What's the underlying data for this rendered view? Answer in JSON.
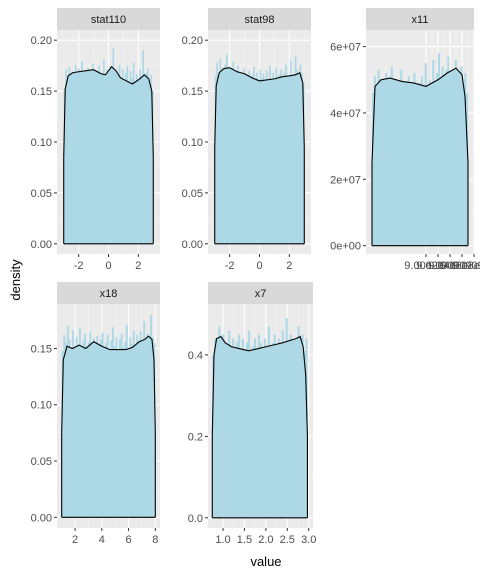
{
  "chart_data": {
    "type": "histogram-density",
    "layout": "facet_wrap",
    "xlabel": "value",
    "ylabel": "density",
    "colors": {
      "panel_background": "#ebebeb",
      "grid_major": "#ffffff",
      "grid_minor": "#f3f3f3",
      "strip_background": "#d9d9d9",
      "histogram_fill": "#add8e6",
      "density_line": "#000000",
      "tick_text": "#4d4d4d"
    },
    "panels": [
      {
        "title": "stat110",
        "xlim": [
          -3.45,
          3.45
        ],
        "ylim": [
          -0.01,
          0.21
        ],
        "xticks": [
          -2,
          0,
          2
        ],
        "xtick_labels": [
          "-2",
          "0",
          "2"
        ],
        "yticks": [
          0.0,
          0.05,
          0.1,
          0.15,
          0.2
        ],
        "ytick_labels": [
          "0.00",
          "0.05",
          "0.10",
          "0.15",
          "0.20"
        ],
        "hist_range": [
          -3.0,
          3.0
        ],
        "hist_values": [
          0.152,
          0.171,
          0.16,
          0.174,
          0.158,
          0.169,
          0.162,
          0.176,
          0.155,
          0.172,
          0.164,
          0.179,
          0.16,
          0.168,
          0.154,
          0.173,
          0.166,
          0.161,
          0.177,
          0.158,
          0.17,
          0.163,
          0.175,
          0.159,
          0.168,
          0.181,
          0.162,
          0.171,
          0.157,
          0.174,
          0.166,
          0.192,
          0.16,
          0.169,
          0.155,
          0.176,
          0.164,
          0.172,
          0.158,
          0.168,
          0.175,
          0.151,
          0.17,
          0.163,
          0.178,
          0.16,
          0.167,
          0.155,
          0.171,
          0.164,
          0.19,
          0.158,
          0.168,
          0.172,
          0.16,
          0.166,
          0.15
        ],
        "density_x": [
          -3.0,
          -2.9,
          -2.7,
          -2.4,
          -2.0,
          -1.5,
          -1.0,
          -0.5,
          -0.2,
          0.2,
          0.5,
          0.8,
          1.2,
          1.6,
          2.0,
          2.4,
          2.7,
          2.9,
          3.0
        ],
        "density_y": [
          0.085,
          0.152,
          0.165,
          0.168,
          0.169,
          0.17,
          0.171,
          0.167,
          0.166,
          0.174,
          0.17,
          0.163,
          0.16,
          0.157,
          0.161,
          0.166,
          0.162,
          0.15,
          0.085
        ]
      },
      {
        "title": "stat98",
        "xlim": [
          -3.45,
          3.45
        ],
        "ylim": [
          -0.01,
          0.21
        ],
        "xticks": [
          -2,
          0,
          2
        ],
        "xtick_labels": [
          "-2",
          "0",
          "2"
        ],
        "yticks": [
          0.0,
          0.05,
          0.1,
          0.15,
          0.2
        ],
        "ytick_labels": [
          "0.00",
          "0.05",
          "0.10",
          "0.15",
          "0.20"
        ],
        "hist_range": [
          -3.0,
          3.0
        ],
        "hist_values": [
          0.165,
          0.178,
          0.16,
          0.182,
          0.171,
          0.158,
          0.176,
          0.186,
          0.164,
          0.172,
          0.155,
          0.179,
          0.168,
          0.161,
          0.175,
          0.15,
          0.168,
          0.159,
          0.172,
          0.163,
          0.138,
          0.17,
          0.158,
          0.166,
          0.174,
          0.16,
          0.168,
          0.155,
          0.171,
          0.163,
          0.167,
          0.158,
          0.17,
          0.162,
          0.175,
          0.157,
          0.168,
          0.161,
          0.173,
          0.142,
          0.166,
          0.171,
          0.158,
          0.168,
          0.176,
          0.16,
          0.164,
          0.18,
          0.166,
          0.159,
          0.185,
          0.171,
          0.163,
          0.176,
          0.168,
          0.158
        ],
        "density_x": [
          -3.0,
          -2.9,
          -2.7,
          -2.4,
          -2.0,
          -1.5,
          -1.0,
          -0.5,
          0.0,
          0.5,
          1.0,
          1.5,
          2.0,
          2.4,
          2.7,
          2.9,
          3.0
        ],
        "density_y": [
          0.095,
          0.155,
          0.168,
          0.172,
          0.173,
          0.169,
          0.167,
          0.163,
          0.16,
          0.161,
          0.162,
          0.164,
          0.165,
          0.166,
          0.168,
          0.158,
          0.095
        ]
      },
      {
        "title": "x11",
        "xlim": [
          8.9e-09,
          9.08e-09
        ],
        "ylim": [
          -2500000.0,
          65000000.0
        ],
        "xticks": [
          9e-09,
          9.02e-09,
          9.04e-09,
          9.06e-09,
          9.08e-09
        ],
        "xtick_labels": [
          "9.00e-09",
          "9.02e-09",
          "9.04e-09",
          "9.06e-09",
          "9.08e-09"
        ],
        "yticks": [
          0,
          20000000.0,
          40000000.0,
          60000000.0
        ],
        "ytick_labels": [
          "0e+00",
          "2e+07",
          "4e+07",
          "6e+07"
        ],
        "hist_range": [
          8.91e-09,
          9.07e-09
        ],
        "hist_values": [
          46000000.0,
          51000000.0,
          48000000.0,
          53000000.0,
          47000000.0,
          50000000.0,
          45000000.0,
          52000000.0,
          49000000.0,
          46000000.0,
          54000000.0,
          48000000.0,
          44000000.0,
          50000000.0,
          47000000.0,
          53000000.0,
          46000000.0,
          49000000.0,
          43000000.0,
          51000000.0,
          47000000.0,
          45000000.0,
          52000000.0,
          48000000.0,
          44000000.0,
          49000000.0,
          51000000.0,
          46000000.0,
          55000000.0,
          48000000.0,
          50000000.0,
          47000000.0,
          56000000.0,
          49000000.0,
          52000000.0,
          58000000.0,
          50000000.0,
          54000000.0,
          49000000.0,
          53000000.0,
          57000000.0,
          50000000.0,
          52000000.0,
          48000000.0,
          56000000.0,
          51000000.0,
          49000000.0,
          54000000.0,
          47000000.0,
          52000000.0,
          46000000.0
        ],
        "density_x": [
          8.91e-09,
          8.915e-09,
          8.925e-09,
          8.94e-09,
          8.96e-09,
          8.98e-09,
          9e-09,
          9.02e-09,
          9.035e-09,
          9.05e-09,
          9.06e-09,
          9.065e-09,
          9.07e-09
        ],
        "density_y": [
          25000000.0,
          48000000.0,
          50000000.0,
          50500000.0,
          49500000.0,
          49000000.0,
          48000000.0,
          50000000.0,
          52000000.0,
          53500000.0,
          51500000.0,
          45000000.0,
          25000000.0
        ]
      },
      {
        "title": "x18",
        "xlim": [
          0.65,
          8.35
        ],
        "ylim": [
          -0.0095,
          0.1895
        ],
        "xticks": [
          2,
          4,
          6,
          8
        ],
        "xtick_labels": [
          "2",
          "4",
          "6",
          "8"
        ],
        "yticks": [
          0.0,
          0.05,
          0.1,
          0.15
        ],
        "ytick_labels": [
          "0.00",
          "0.05",
          "0.10",
          "0.15"
        ],
        "hist_range": [
          1.0,
          8.0
        ],
        "hist_values": [
          0.148,
          0.162,
          0.155,
          0.17,
          0.158,
          0.151,
          0.166,
          0.145,
          0.16,
          0.153,
          0.168,
          0.149,
          0.157,
          0.163,
          0.15,
          0.156,
          0.165,
          0.147,
          0.159,
          0.154,
          0.161,
          0.146,
          0.158,
          0.164,
          0.15,
          0.155,
          0.162,
          0.148,
          0.157,
          0.169,
          0.152,
          0.16,
          0.146,
          0.158,
          0.163,
          0.151,
          0.156,
          0.171,
          0.149,
          0.16,
          0.154,
          0.166,
          0.15,
          0.162,
          0.157,
          0.165,
          0.152,
          0.174,
          0.158,
          0.163,
          0.15,
          0.18,
          0.16,
          0.155
        ],
        "density_x": [
          1.0,
          1.12,
          1.4,
          1.8,
          2.3,
          2.8,
          3.4,
          4.0,
          4.6,
          5.2,
          5.8,
          6.3,
          6.8,
          7.2,
          7.5,
          7.75,
          7.9,
          8.0
        ],
        "density_y": [
          0.075,
          0.14,
          0.152,
          0.15,
          0.153,
          0.15,
          0.156,
          0.152,
          0.149,
          0.149,
          0.149,
          0.151,
          0.156,
          0.158,
          0.161,
          0.158,
          0.14,
          0.075
        ]
      },
      {
        "title": "x7",
        "xlim": [
          0.65,
          3.1
        ],
        "ylim": [
          -0.025,
          0.525
        ],
        "xticks": [
          1.0,
          1.5,
          2.0,
          2.5,
          3.0
        ],
        "xtick_labels": [
          "1.0",
          "1.5",
          "2.0",
          "2.5",
          "3.0"
        ],
        "yticks": [
          0.0,
          0.2,
          0.4
        ],
        "ytick_labels": [
          "0.0",
          "0.2",
          "0.4"
        ],
        "hist_range": [
          0.75,
          2.97
        ],
        "hist_values": [
          0.4,
          0.44,
          0.42,
          0.47,
          0.41,
          0.45,
          0.43,
          0.4,
          0.46,
          0.42,
          0.44,
          0.39,
          0.43,
          0.45,
          0.41,
          0.44,
          0.38,
          0.43,
          0.46,
          0.4,
          0.42,
          0.44,
          0.41,
          0.45,
          0.43,
          0.4,
          0.44,
          0.42,
          0.47,
          0.41,
          0.43,
          0.45,
          0.4,
          0.44,
          0.42,
          0.46,
          0.41,
          0.49,
          0.43,
          0.45,
          0.4,
          0.44,
          0.42,
          0.47,
          0.43,
          0.45,
          0.41,
          0.44
        ],
        "density_x": [
          0.75,
          0.79,
          0.85,
          0.95,
          1.05,
          1.2,
          1.4,
          1.6,
          1.8,
          2.0,
          2.2,
          2.4,
          2.55,
          2.7,
          2.8,
          2.87,
          2.93,
          2.97
        ],
        "density_y": [
          0.2,
          0.4,
          0.44,
          0.445,
          0.43,
          0.42,
          0.415,
          0.41,
          0.415,
          0.42,
          0.425,
          0.43,
          0.435,
          0.44,
          0.445,
          0.42,
          0.35,
          0.2
        ]
      }
    ]
  }
}
